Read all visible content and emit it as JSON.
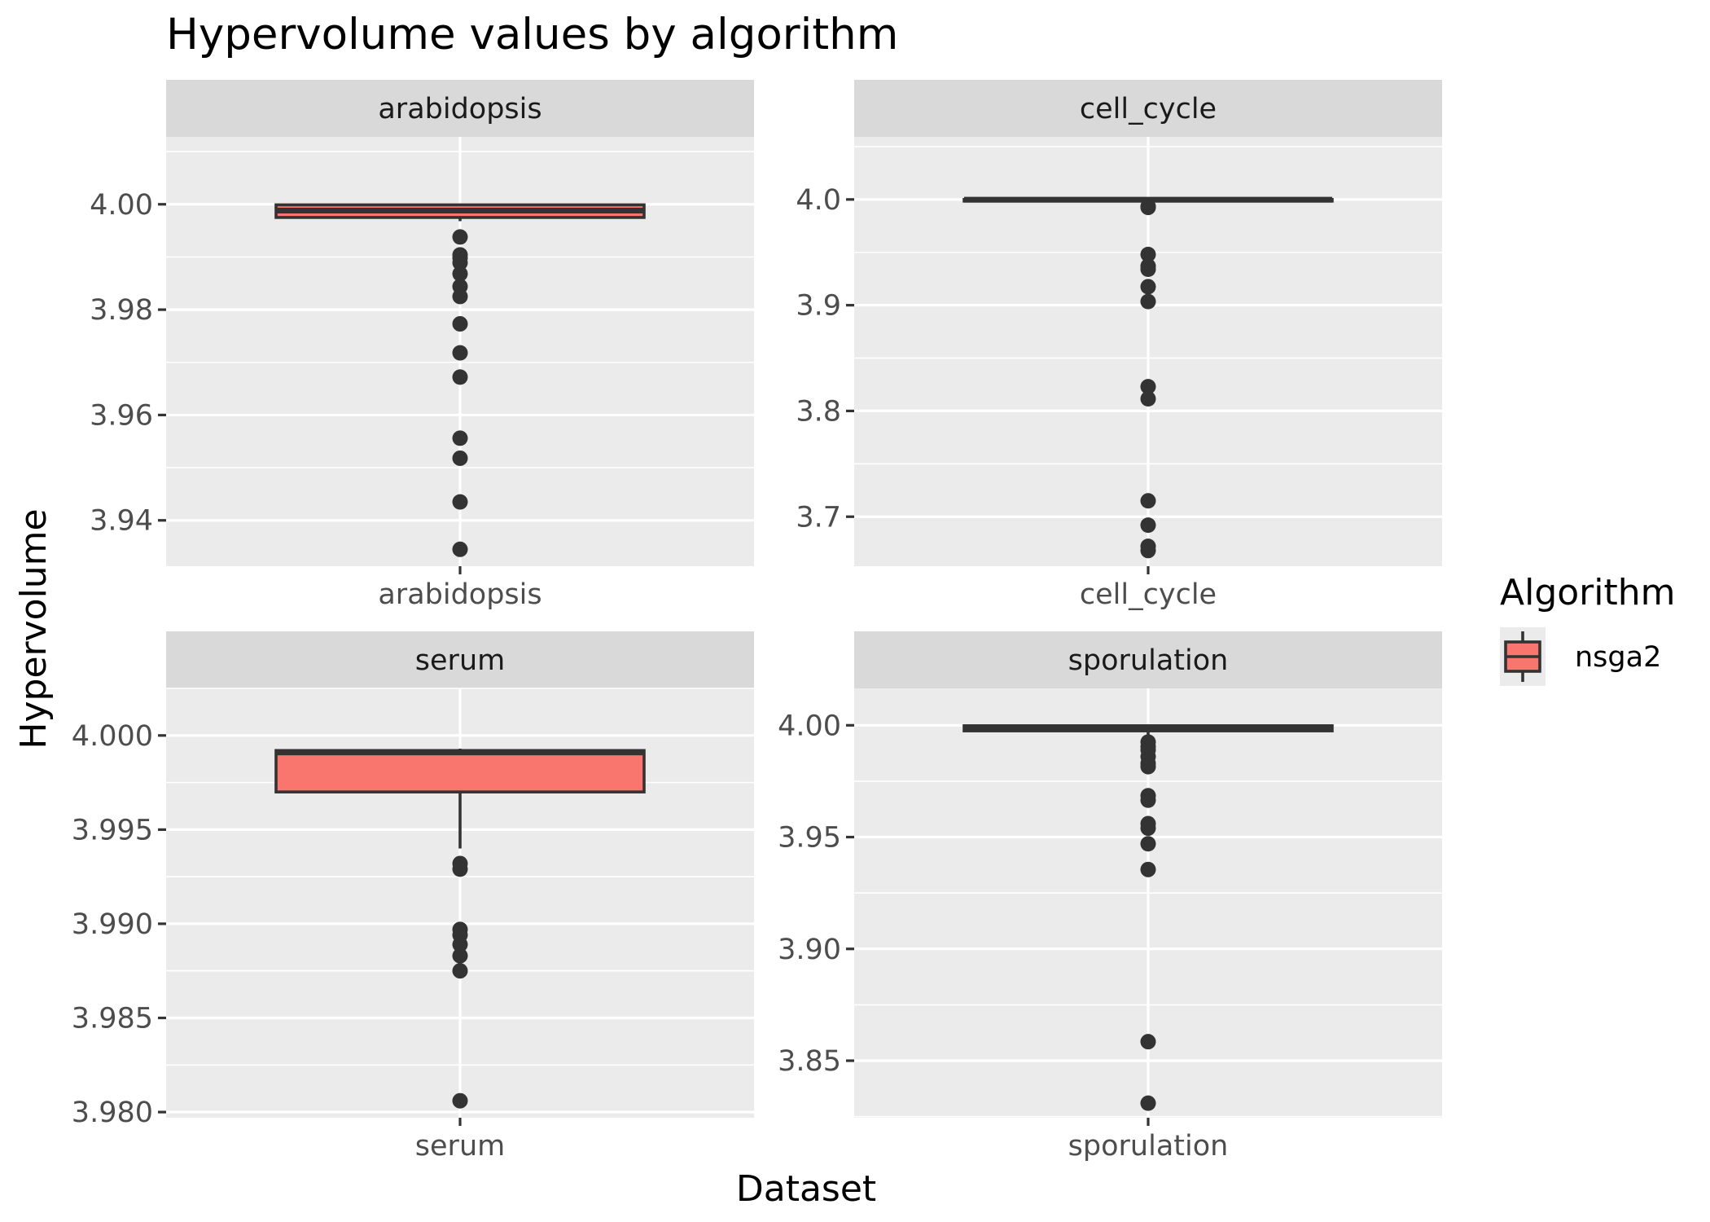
{
  "title": "Hypervolume values by algorithm",
  "xlabel": "Dataset",
  "ylabel": "Hypervolume",
  "legend": {
    "title": "Algorithm",
    "items": [
      {
        "label": "nsga2",
        "color": "#F8766D"
      }
    ]
  },
  "chart_data": {
    "type": "boxplot",
    "facets": [
      {
        "strip": "arabidopsis",
        "category": "arabidopsis",
        "ylim": [
          3.9313,
          4.0128
        ],
        "ticks": [
          3.94,
          3.96,
          3.98,
          4.0
        ],
        "tick_labels": [
          "3.94",
          "3.96",
          "3.98",
          "4.00"
        ],
        "box": {
          "q1": 3.9975,
          "median": 3.9988,
          "q3": 3.9999,
          "whisker_low": 3.9968,
          "whisker_high": 3.9999
        },
        "outliers": [
          3.9938,
          3.9904,
          3.9898,
          3.9889,
          3.9868,
          3.9844,
          3.9825,
          3.9773,
          3.9718,
          3.9672,
          3.9556,
          3.9518,
          3.9435,
          3.9345
        ]
      },
      {
        "strip": "cell_cycle",
        "category": "cell_cycle",
        "ylim": [
          3.6532,
          4.0592
        ],
        "ticks": [
          3.7,
          3.8,
          3.9,
          4.0
        ],
        "tick_labels": [
          "3.7",
          "3.8",
          "3.9",
          "4.0"
        ],
        "box": {
          "q1": 3.9995,
          "median": 3.9998,
          "q3": 4.0,
          "whisker_low": 3.999,
          "whisker_high": 4.0
        },
        "outliers": [
          3.9935,
          3.9925,
          3.948,
          3.937,
          3.934,
          3.9175,
          3.9035,
          3.823,
          3.8115,
          3.715,
          3.692,
          3.672,
          3.668
        ]
      },
      {
        "strip": "serum",
        "category": "serum",
        "ylim": [
          3.9797,
          4.0025
        ],
        "ticks": [
          3.98,
          3.985,
          3.99,
          3.995,
          4.0
        ],
        "tick_labels": [
          "3.980",
          "3.985",
          "3.990",
          "3.995",
          "4.000"
        ],
        "box": {
          "q1": 3.997,
          "median": 3.9991,
          "q3": 3.9992,
          "whisker_low": 3.994,
          "whisker_high": 3.9993
        },
        "outliers": [
          3.9932,
          3.9929,
          3.9897,
          3.9894,
          3.9889,
          3.9883,
          3.9875,
          3.9806
        ]
      },
      {
        "strip": "sporulation",
        "category": "sporulation",
        "ylim": [
          3.8245,
          4.0165
        ],
        "ticks": [
          3.85,
          3.9,
          3.95,
          4.0
        ],
        "tick_labels": [
          "3.85",
          "3.90",
          "3.95",
          "4.00"
        ],
        "box": {
          "q1": 3.9975,
          "median": 3.999,
          "q3": 3.9998,
          "whisker_low": 3.995,
          "whisker_high": 3.9999
        },
        "outliers": [
          3.9925,
          3.9905,
          3.989,
          3.986,
          3.983,
          3.9815,
          3.9685,
          3.9665,
          3.956,
          3.954,
          3.947,
          3.9355,
          3.8585,
          3.831
        ]
      }
    ]
  }
}
